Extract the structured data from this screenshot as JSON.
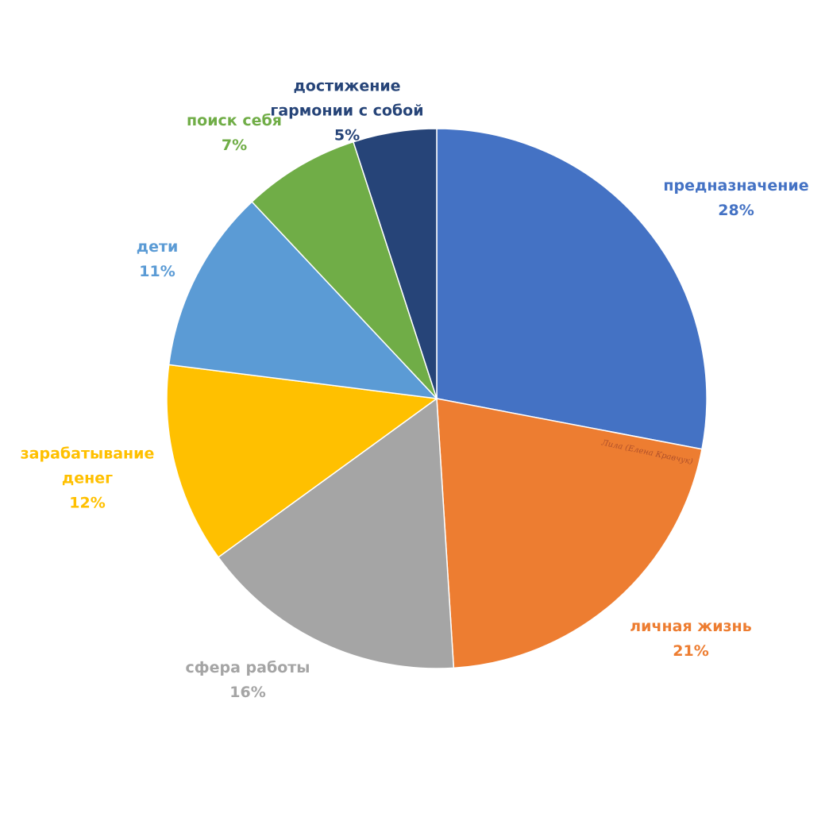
{
  "chart_data": {
    "type": "pie",
    "categories": [
      "предназначение",
      "личная жизнь",
      "сфера работы",
      "зарабатывание денег",
      "дети",
      "поиск себя",
      "достижение гармонии с собой"
    ],
    "values": [
      28,
      21,
      16,
      12,
      11,
      7,
      5
    ],
    "value_labels": [
      "28%",
      "21%",
      "16%",
      "12%",
      "11%",
      "7%",
      "5%"
    ],
    "colors": [
      "#4472c4",
      "#ed7d31",
      "#a5a5a5",
      "#ffc000",
      "#5b9bd5",
      "#70ad47",
      "#264478"
    ],
    "watermark": "Лила (Елена Кравчук)"
  }
}
